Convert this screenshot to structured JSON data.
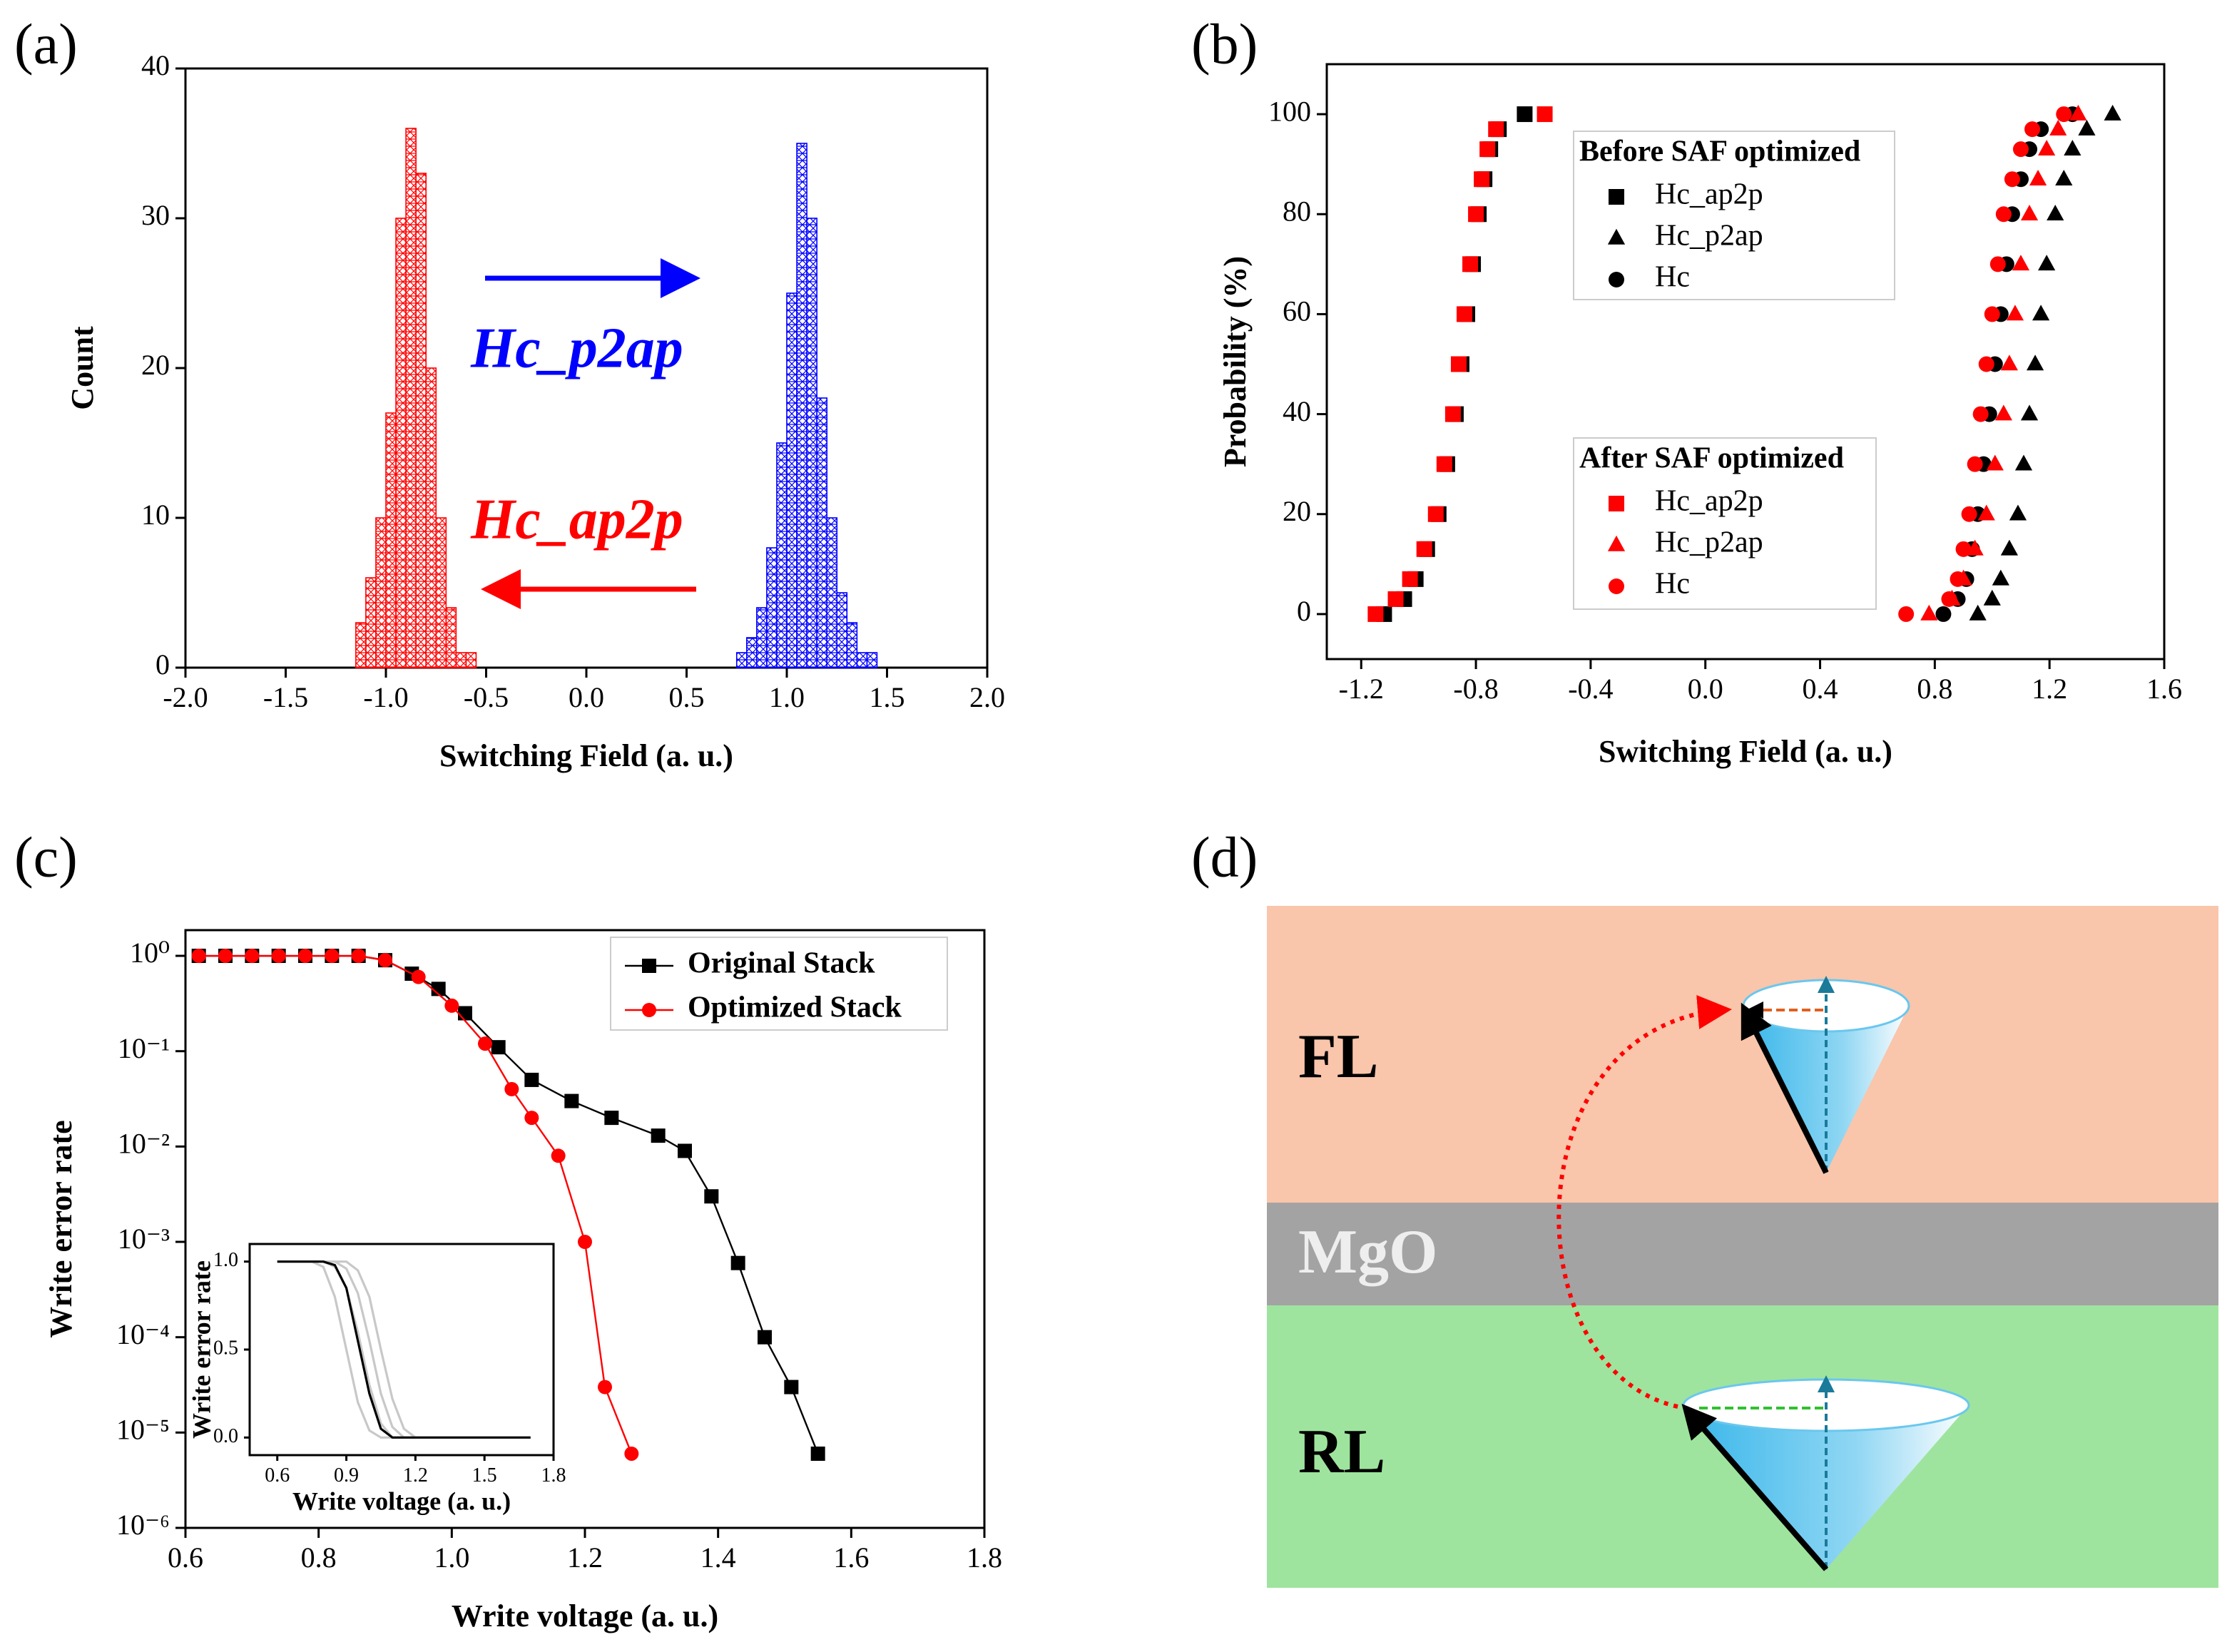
{
  "chart_data": [
    {
      "type": "histogram",
      "panel_label": "(a)",
      "xlabel": "Switching Field (a. u.)",
      "ylabel": "Count",
      "xlim": [
        -2,
        2
      ],
      "xticks": [
        {
          "value": -2,
          "label": "-2.0"
        },
        -1.5,
        {
          "value": -1,
          "label": "-1.0"
        },
        -0.5,
        {
          "value": 0,
          "label": "0.0"
        },
        0.5,
        {
          "value": 1,
          "label": "1.0"
        },
        1.5,
        {
          "value": 2,
          "label": "2.0"
        }
      ],
      "ylim": [
        0,
        40
      ],
      "yticks": [
        0,
        10,
        20,
        30,
        40
      ],
      "series": [
        {
          "name": "Hc_ap2p",
          "color": "#ff0000",
          "bins": [
            -1.15,
            -1.1,
            -1.05,
            -1.0,
            -0.95,
            -0.9,
            -0.85,
            -0.8,
            -0.75,
            -0.7,
            -0.65,
            -0.6,
            -0.55
          ],
          "values": [
            3,
            6,
            10,
            17,
            30,
            36,
            33,
            20,
            10,
            4,
            1,
            1
          ]
        },
        {
          "name": "Hc_p2ap",
          "color": "#0000ff",
          "bins": [
            0.75,
            0.8,
            0.85,
            0.9,
            0.95,
            1.0,
            1.05,
            1.1,
            1.15,
            1.2,
            1.25,
            1.3,
            1.35,
            1.4,
            1.45
          ],
          "values": [
            1,
            2,
            4,
            8,
            15,
            25,
            35,
            30,
            18,
            10,
            5,
            3,
            1,
            1
          ]
        }
      ]
    },
    {
      "type": "scatter",
      "panel_label": "(b)",
      "xlabel": "Switching Field (a. u.)",
      "ylabel": "Probability (%)",
      "xlim": [
        -1.32,
        1.6
      ],
      "xticks": [
        -1.2,
        -0.8,
        -0.4,
        {
          "value": 0,
          "label": "0.0"
        },
        0.4,
        0.8,
        1.2,
        1.6
      ],
      "ylim": [
        -9,
        110
      ],
      "yticks": [
        0,
        20,
        40,
        60,
        80,
        100
      ],
      "series_groups": [
        {
          "title": "Before SAF optimized",
          "series": [
            {
              "name": "Hc_ap2p",
              "color": "#000000",
              "marker": "square",
              "x": [
                -1.12,
                -1.05,
                -1.01,
                -0.97,
                -0.93,
                -0.9,
                -0.87,
                -0.85,
                -0.83,
                -0.81,
                -0.79,
                -0.77,
                -0.75,
                -0.72,
                -0.63
              ],
              "values": [
                0,
                3,
                7,
                13,
                20,
                30,
                40,
                50,
                60,
                70,
                80,
                87,
                93,
                97,
                100
              ]
            },
            {
              "name": "Hc_p2ap",
              "color": "#000000",
              "marker": "triangle",
              "x": [
                0.95,
                1.0,
                1.03,
                1.06,
                1.09,
                1.11,
                1.13,
                1.15,
                1.17,
                1.19,
                1.22,
                1.25,
                1.28,
                1.33,
                1.42
              ],
              "values": [
                0,
                3,
                7,
                13,
                20,
                30,
                40,
                50,
                60,
                70,
                80,
                87,
                93,
                97,
                100
              ]
            },
            {
              "name": "Hc",
              "color": "#000000",
              "marker": "circle",
              "x": [
                0.83,
                0.88,
                0.91,
                0.93,
                0.95,
                0.97,
                0.99,
                1.01,
                1.03,
                1.05,
                1.07,
                1.1,
                1.13,
                1.17,
                1.28
              ],
              "values": [
                0,
                3,
                7,
                13,
                20,
                30,
                40,
                50,
                60,
                70,
                80,
                87,
                93,
                97,
                100
              ]
            }
          ]
        },
        {
          "title": "After SAF optimized",
          "series": [
            {
              "name": "Hc_ap2p",
              "color": "#ff0000",
              "marker": "square",
              "x": [
                -1.15,
                -1.08,
                -1.03,
                -0.98,
                -0.94,
                -0.91,
                -0.88,
                -0.86,
                -0.84,
                -0.82,
                -0.8,
                -0.78,
                -0.76,
                -0.73,
                -0.56
              ],
              "values": [
                0,
                3,
                7,
                13,
                20,
                30,
                40,
                50,
                60,
                70,
                80,
                87,
                93,
                97,
                100
              ]
            },
            {
              "name": "Hc_p2ap",
              "color": "#ff0000",
              "marker": "triangle",
              "x": [
                0.78,
                0.86,
                0.9,
                0.94,
                0.98,
                1.01,
                1.04,
                1.06,
                1.08,
                1.1,
                1.13,
                1.16,
                1.19,
                1.23,
                1.3
              ],
              "values": [
                0,
                3,
                7,
                13,
                20,
                30,
                40,
                50,
                60,
                70,
                80,
                87,
                93,
                97,
                100
              ]
            },
            {
              "name": "Hc",
              "color": "#ff0000",
              "marker": "circle",
              "x": [
                0.7,
                0.85,
                0.88,
                0.9,
                0.92,
                0.94,
                0.96,
                0.98,
                1.0,
                1.02,
                1.04,
                1.07,
                1.1,
                1.14,
                1.25
              ],
              "values": [
                0,
                3,
                7,
                13,
                20,
                30,
                40,
                50,
                60,
                70,
                80,
                87,
                93,
                97,
                100
              ]
            }
          ]
        }
      ]
    },
    {
      "type": "line",
      "panel_label": "(c)",
      "xlabel": "Write voltage (a. u.)",
      "ylabel": "Write error rate",
      "log_y": true,
      "xlim": [
        0.6,
        1.8
      ],
      "xticks": [
        0.6,
        0.8,
        {
          "value": 1,
          "label": "1.0"
        },
        1.2,
        1.4,
        1.6,
        1.8
      ],
      "ylim": [
        1e-06,
        1.86
      ],
      "yticks": [
        {
          "value": 1e-06,
          "label": "10⁻⁶"
        },
        {
          "value": 1e-05,
          "label": "10⁻⁵"
        },
        {
          "value": 0.0001,
          "label": "10⁻⁴"
        },
        {
          "value": 0.001,
          "label": "10⁻³"
        },
        {
          "value": 0.01,
          "label": "10⁻²"
        },
        {
          "value": 0.1,
          "label": "10⁻¹"
        },
        {
          "value": 1,
          "label": "10⁰"
        }
      ],
      "series": [
        {
          "name": "Original Stack",
          "color": "#000000",
          "marker": "square",
          "x": [
            0.62,
            0.66,
            0.7,
            0.74,
            0.78,
            0.82,
            0.86,
            0.9,
            0.94,
            0.98,
            1.02,
            1.07,
            1.12,
            1.18,
            1.24,
            1.31,
            1.35,
            1.39,
            1.43,
            1.47,
            1.51,
            1.55
          ],
          "values": [
            1,
            1,
            1,
            1,
            1,
            1,
            1,
            0.9,
            0.65,
            0.45,
            0.25,
            0.11,
            0.05,
            0.03,
            0.02,
            0.013,
            0.009,
            0.003,
            0.0006,
            0.0001,
            3e-05,
            6e-06
          ]
        },
        {
          "name": "Optimized Stack",
          "color": "#ff0000",
          "marker": "circle",
          "x": [
            0.62,
            0.66,
            0.7,
            0.74,
            0.78,
            0.82,
            0.86,
            0.9,
            0.95,
            1.0,
            1.05,
            1.09,
            1.12,
            1.16,
            1.2,
            1.23,
            1.27
          ],
          "values": [
            1,
            1,
            1,
            1,
            1,
            1,
            1,
            0.9,
            0.6,
            0.3,
            0.12,
            0.04,
            0.02,
            0.008,
            0.001,
            3e-05,
            6e-06
          ]
        }
      ]
    },
    {
      "type": "line",
      "xlabel": "Write voltage (a. u.)",
      "ylabel": "Write error rate",
      "xlim": [
        0.48,
        1.8
      ],
      "xticks": [
        0.6,
        0.9,
        1.2,
        1.5,
        1.8
      ],
      "ylim": [
        -0.1,
        1.1
      ],
      "yticks": [
        {
          "value": 0,
          "label": "0.0"
        },
        0.5,
        {
          "value": 1,
          "label": "1.0"
        }
      ],
      "series": [
        {
          "color": "#c8c8c8",
          "x": [
            0.6,
            0.75,
            0.8,
            0.85,
            0.9,
            0.95,
            1.0,
            1.05,
            1.15,
            1.7
          ],
          "values": [
            1,
            1,
            0.97,
            0.8,
            0.5,
            0.2,
            0.04,
            0,
            0,
            0
          ]
        },
        {
          "color": "#c8c8c8",
          "x": [
            0.6,
            0.8,
            0.85,
            0.9,
            0.95,
            1.0,
            1.05,
            1.1,
            1.2,
            1.7
          ],
          "values": [
            1,
            1,
            0.97,
            0.85,
            0.6,
            0.3,
            0.08,
            0,
            0,
            0
          ]
        },
        {
          "color": "#c8c8c8",
          "x": [
            0.6,
            0.85,
            0.9,
            0.95,
            1.0,
            1.05,
            1.1,
            1.15,
            1.25,
            1.7
          ],
          "values": [
            1,
            1,
            0.96,
            0.82,
            0.55,
            0.25,
            0.06,
            0,
            0,
            0
          ]
        },
        {
          "color": "#c8c8c8",
          "x": [
            0.6,
            0.9,
            0.95,
            1.0,
            1.05,
            1.1,
            1.15,
            1.2,
            1.3,
            1.7
          ],
          "values": [
            1,
            1,
            0.95,
            0.8,
            0.5,
            0.22,
            0.05,
            0,
            0,
            0
          ]
        },
        {
          "color": "#000000",
          "x": [
            0.6,
            0.8,
            0.85,
            0.9,
            0.95,
            1.0,
            1.05,
            1.1,
            1.2,
            1.7
          ],
          "values": [
            1,
            1,
            0.98,
            0.85,
            0.55,
            0.25,
            0.05,
            0,
            0,
            0
          ]
        }
      ]
    }
  ],
  "diagram": {
    "panel_label": "(d)",
    "layers": [
      "FL",
      "MgO",
      "RL"
    ]
  }
}
